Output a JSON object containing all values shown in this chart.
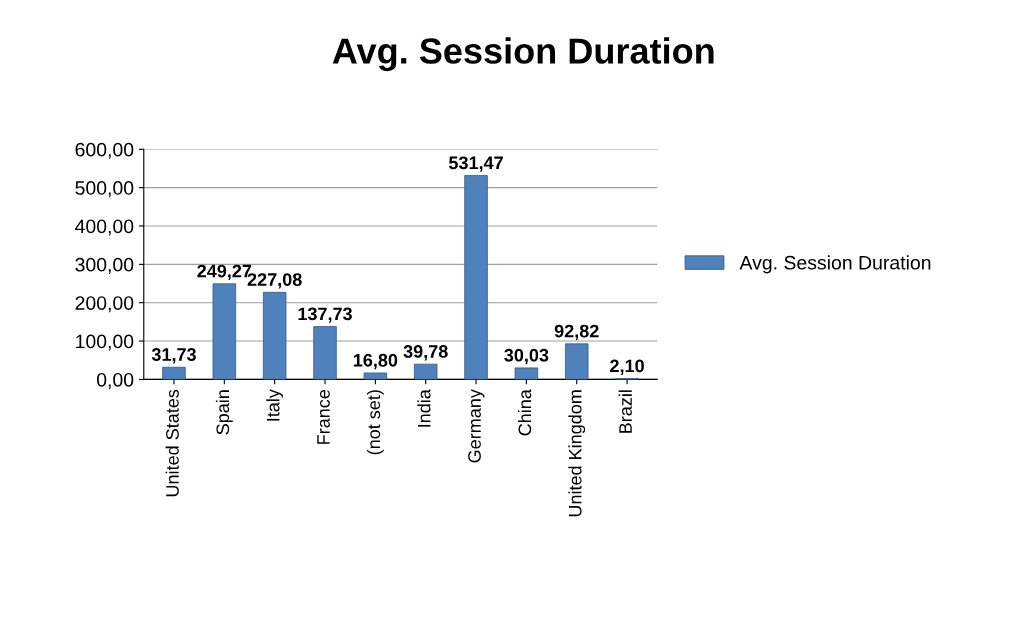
{
  "chart_data": {
    "type": "bar",
    "title": "Avg. Session Duration",
    "categories": [
      "United States",
      "Spain",
      "Italy",
      "France",
      "(not set)",
      "India",
      "Germany",
      "China",
      "United Kingdom",
      "Brazil"
    ],
    "series": [
      {
        "name": "Avg. Session Duration",
        "color": "#4f81bd",
        "values": [
          31.73,
          249.27,
          227.08,
          137.73,
          16.8,
          39.78,
          531.47,
          30.03,
          92.82,
          2.1
        ],
        "value_labels": [
          "31,73",
          "249,27",
          "227,08",
          "137,73",
          "16,80",
          "39,78",
          "531,47",
          "30,03",
          "92,82",
          "2,10"
        ]
      }
    ],
    "ylim": [
      0,
      600
    ],
    "yticks": [
      {
        "value": 0,
        "label": "0,00"
      },
      {
        "value": 100,
        "label": "100,00"
      },
      {
        "value": 200,
        "label": "200,00"
      },
      {
        "value": 300,
        "label": "300,00"
      },
      {
        "value": 400,
        "label": "400,00"
      },
      {
        "value": 500,
        "label": "500,00"
      },
      {
        "value": 600,
        "label": "600,00"
      }
    ],
    "grid": "y",
    "legend": "right"
  }
}
